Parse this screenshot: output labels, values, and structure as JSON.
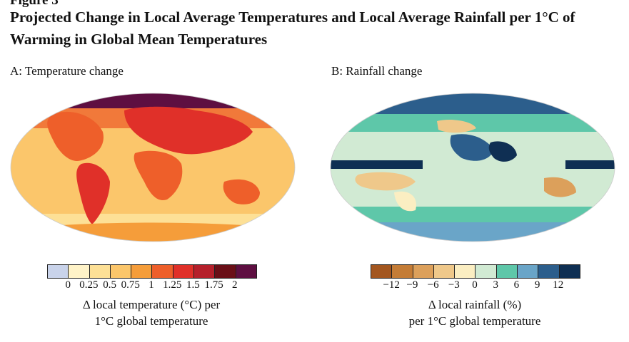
{
  "figure_label": "Figure 3",
  "title": "Projected Change in Local Average Temperatures and Local Average Rainfall per 1°C of Warming in Global Mean Temperatures",
  "panels": {
    "a": {
      "title": "A: Temperature change",
      "ticks": [
        "0",
        "0.25",
        "0.5",
        "0.75",
        "1",
        "1.25",
        "1.5",
        "1.75",
        "2"
      ],
      "caption_line1": "Δ local temperature (°C) per",
      "caption_line2": "1°C global temperature",
      "colors": [
        "#c9d3ea",
        "#fff3c8",
        "#fde096",
        "#fbc66b",
        "#f59d3a",
        "#ee5f2a",
        "#e03029",
        "#b5202b",
        "#6a0f17",
        "#5e0f41"
      ]
    },
    "b": {
      "title": "B: Rainfall change",
      "ticks": [
        "−12",
        "−9",
        "−6",
        "−3",
        "0",
        "3",
        "6",
        "9",
        "12"
      ],
      "caption_line1": "Δ local rainfall (%)",
      "caption_line2": "per 1°C global temperature",
      "colors": [
        "#a3561f",
        "#c47c36",
        "#dca05b",
        "#efc88a",
        "#fbeec2",
        "#d1ead3",
        "#5ec7a9",
        "#6aa5c8",
        "#2c5e8c",
        "#0f2f53"
      ]
    }
  }
}
